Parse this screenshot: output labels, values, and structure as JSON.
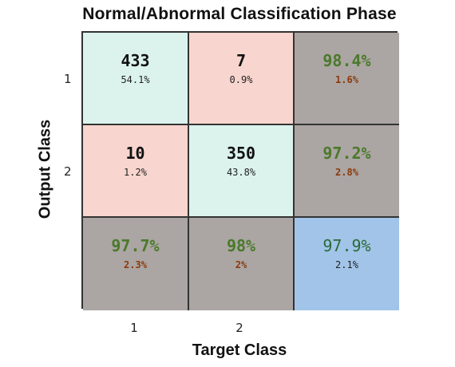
{
  "chart_data": {
    "type": "heatmap",
    "title": "Normal/Abnormal Classification Phase",
    "xlabel": "Target Class",
    "ylabel": "Output Class",
    "x_ticks": [
      "1",
      "2"
    ],
    "y_ticks": [
      "1",
      "2"
    ],
    "cells": [
      [
        {
          "main": "433",
          "sub": "54.1%",
          "kind": "green"
        },
        {
          "main": "7",
          "sub": "0.9%",
          "kind": "red"
        },
        {
          "main": "98.4%",
          "sub": "1.6%",
          "kind": "gray"
        }
      ],
      [
        {
          "main": "10",
          "sub": "1.2%",
          "kind": "red"
        },
        {
          "main": "350",
          "sub": "43.8%",
          "kind": "green"
        },
        {
          "main": "97.2%",
          "sub": "2.8%",
          "kind": "gray"
        }
      ],
      [
        {
          "main": "97.7%",
          "sub": "2.3%",
          "kind": "gray"
        },
        {
          "main": "98%",
          "sub": "2%",
          "kind": "gray"
        },
        {
          "main": "97.9%",
          "sub": "2.1%",
          "kind": "blue"
        }
      ]
    ],
    "colors": {
      "correct": "#dbf3ec",
      "incorrect": "#f8d5ce",
      "summary": "#aba5a3",
      "overall": "#a1c4e8"
    }
  }
}
